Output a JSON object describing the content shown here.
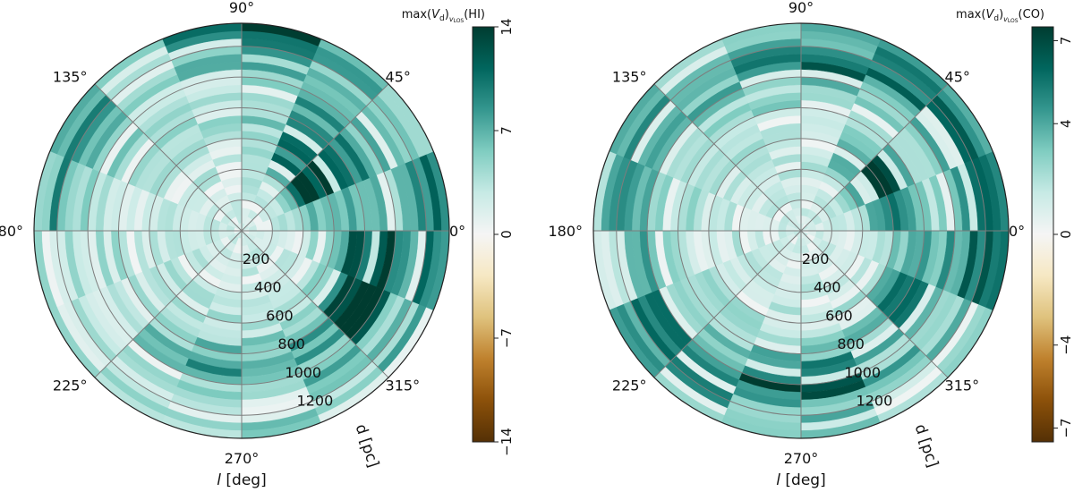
{
  "chart_data": [
    {
      "type": "heatmap",
      "projection": "polar",
      "title": "",
      "colorbar_label_html": "max(V<tspan font-size='10' baseline-shift='-3'>d</tspan>)<tspan font-size='9' baseline-shift='-5'>vLOS</tspan>(HI)",
      "colorbar_label": "max(V_d)_vLOS(HI)",
      "xlabel": "l [deg]",
      "rlabel": "d [pc]",
      "theta_ticks": [
        "0°",
        "45°",
        "90°",
        "135°",
        "180°",
        "225°",
        "270°",
        "315°"
      ],
      "r_ticks": [
        200,
        400,
        600,
        800,
        1000,
        1200
      ],
      "r_tick_labels": [
        "200",
        "400",
        "600",
        "800",
        "1000",
        "1200"
      ],
      "rlim": [
        0,
        1350
      ],
      "colorbar_ticks": [
        14,
        7,
        0,
        -7,
        -14
      ],
      "colorbar_tick_labels": [
        "14",
        "7",
        "0",
        "−7",
        "−14"
      ],
      "clim": [
        -14,
        14
      ],
      "colormap": "BrBG",
      "grid": true,
      "seed": 11,
      "hotspots": [
        {
          "l": 35,
          "d": 530,
          "value": 13
        },
        {
          "l": 50,
          "d": 800,
          "value": 9
        },
        {
          "l": 330,
          "d": 900,
          "value": 11
        },
        {
          "l": 85,
          "d": 1300,
          "value": 10
        },
        {
          "l": 150,
          "d": 1200,
          "value": 7
        },
        {
          "l": 0,
          "d": 1300,
          "value": 9
        },
        {
          "l": 345,
          "d": 820,
          "value": 8
        },
        {
          "l": 260,
          "d": 900,
          "value": 6
        }
      ]
    },
    {
      "type": "heatmap",
      "projection": "polar",
      "title": "",
      "colorbar_label": "max(V_d)_vLOS(CO)",
      "xlabel": "l [deg]",
      "rlabel": "d [pc]",
      "theta_ticks": [
        "0°",
        "45°",
        "90°",
        "135°",
        "180°",
        "225°",
        "270°",
        "315°"
      ],
      "r_ticks": [
        200,
        400,
        600,
        800,
        1000,
        1200
      ],
      "r_tick_labels": [
        "200",
        "400",
        "600",
        "800",
        "1000",
        "1200"
      ],
      "rlim": [
        0,
        1350
      ],
      "colorbar_ticks": [
        7,
        4,
        0,
        -4,
        -7
      ],
      "colorbar_tick_labels": [
        "7",
        "4",
        "0",
        "−4",
        "−7"
      ],
      "clim": [
        -7.5,
        7.5
      ],
      "colormap": "BrBG",
      "grid": true,
      "seed": 29,
      "hotspots": [
        {
          "l": 32,
          "d": 600,
          "value": 7
        },
        {
          "l": 270,
          "d": 1000,
          "value": 7
        },
        {
          "l": 0,
          "d": 1200,
          "value": 6
        },
        {
          "l": 330,
          "d": 800,
          "value": 5
        },
        {
          "l": 45,
          "d": 1200,
          "value": 5
        },
        {
          "l": 90,
          "d": 1100,
          "value": 4
        },
        {
          "l": 150,
          "d": 1150,
          "value": 4
        },
        {
          "l": 215,
          "d": 1100,
          "value": 4
        }
      ]
    }
  ]
}
